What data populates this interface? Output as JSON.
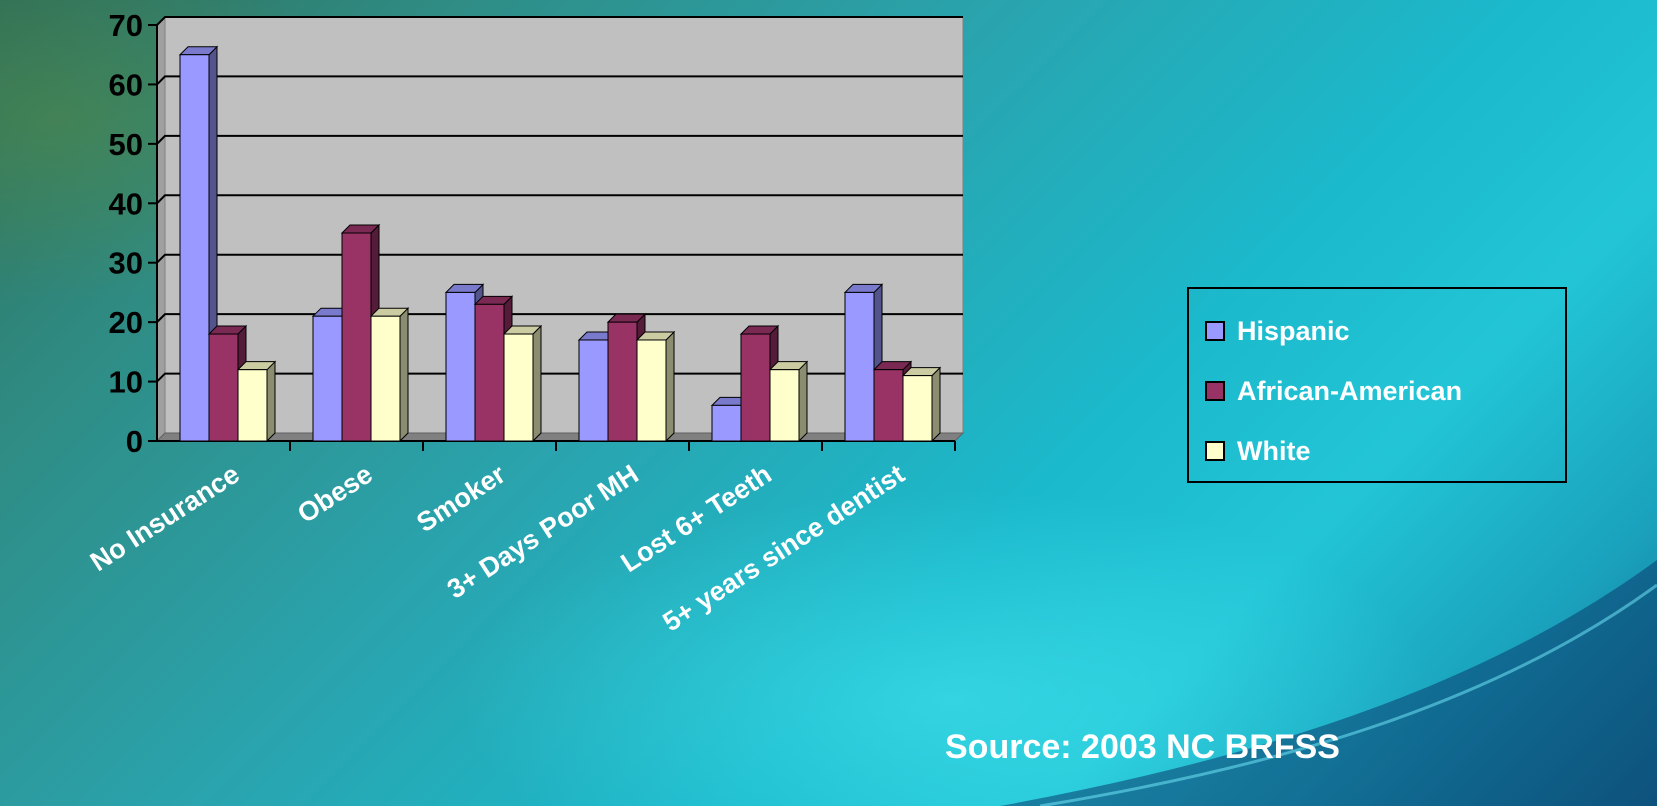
{
  "chart_data": {
    "type": "bar",
    "title": "",
    "xlabel": "",
    "ylabel": "",
    "ylim": [
      0,
      70
    ],
    "yticks": [
      0,
      10,
      20,
      30,
      40,
      50,
      60,
      70
    ],
    "grid": true,
    "legend_position": "right",
    "categories": [
      "No Insurance",
      "Obese",
      "Smoker",
      "3+ Days Poor MH",
      "Lost 6+ Teeth",
      "5+ years since dentist"
    ],
    "series": [
      {
        "name": "Hispanic",
        "color": "#9999ff",
        "values": [
          65,
          21,
          25,
          17,
          6,
          25
        ]
      },
      {
        "name": "African-American",
        "color": "#993366",
        "values": [
          18,
          35,
          23,
          20,
          18,
          12
        ]
      },
      {
        "name": "White",
        "color": "#ffffcc",
        "values": [
          12,
          21,
          18,
          17,
          12,
          11
        ]
      }
    ]
  },
  "source_text": "Source: 2003 NC BRFSS"
}
